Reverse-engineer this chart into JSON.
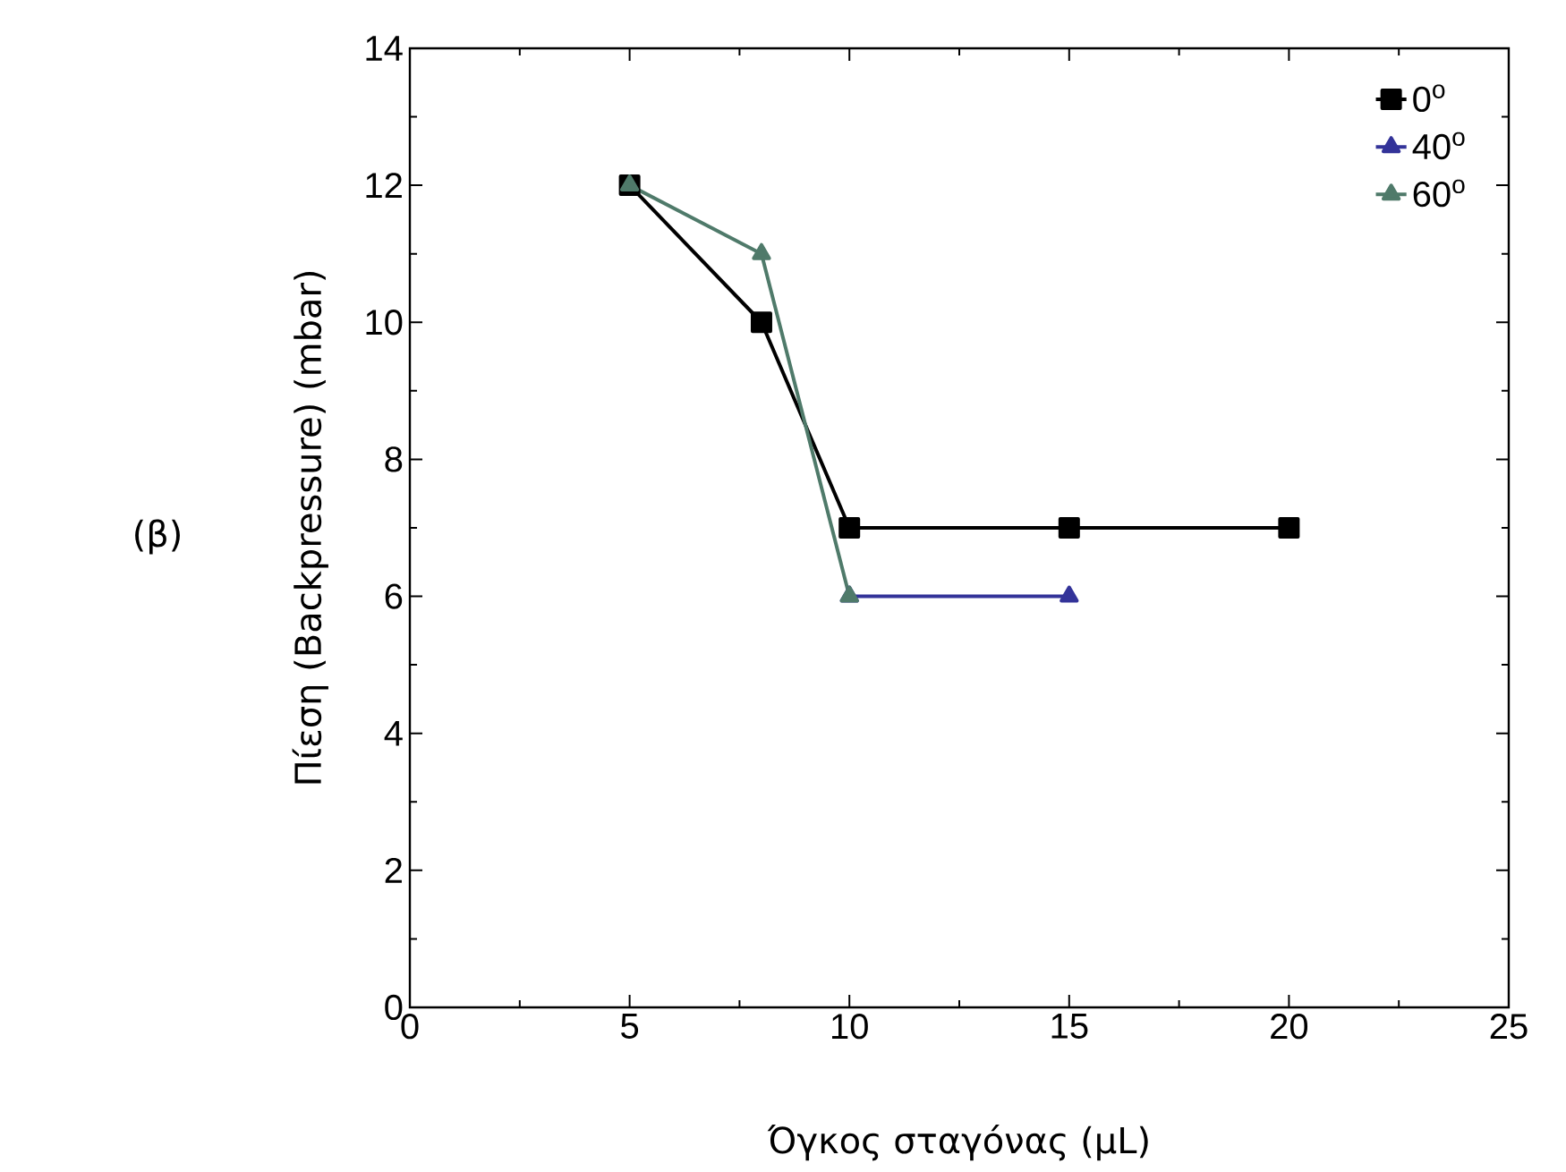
{
  "chart_data": {
    "type": "line",
    "xlabel": "Όγκος σταγόνας (μL)",
    "ylabel": "Πίεση (Backpressure) (mbar)",
    "annotations": [
      "(β)"
    ],
    "xlim": [
      0,
      25
    ],
    "xticks": [
      0,
      5,
      10,
      15,
      20,
      25
    ],
    "ylim": [
      0,
      14
    ],
    "yticks": [
      0,
      2,
      4,
      6,
      8,
      10,
      12,
      14
    ],
    "legend": "top right",
    "grid": false,
    "series": [
      {
        "name": "0$^{o}$",
        "color": "#000000",
        "marker": "square",
        "x": [
          5,
          8,
          10,
          15,
          20
        ],
        "values": [
          12,
          10,
          7,
          7,
          7
        ]
      },
      {
        "name": "40$^{o}$",
        "color": "#333399",
        "marker": "triangle",
        "x": [
          10,
          15
        ],
        "values": [
          6,
          6
        ]
      },
      {
        "name": "60$^{o}$",
        "color": "#4f7a6a",
        "marker": "triangle",
        "x": [
          5,
          8,
          10
        ],
        "values": [
          12,
          11,
          6
        ]
      }
    ]
  }
}
